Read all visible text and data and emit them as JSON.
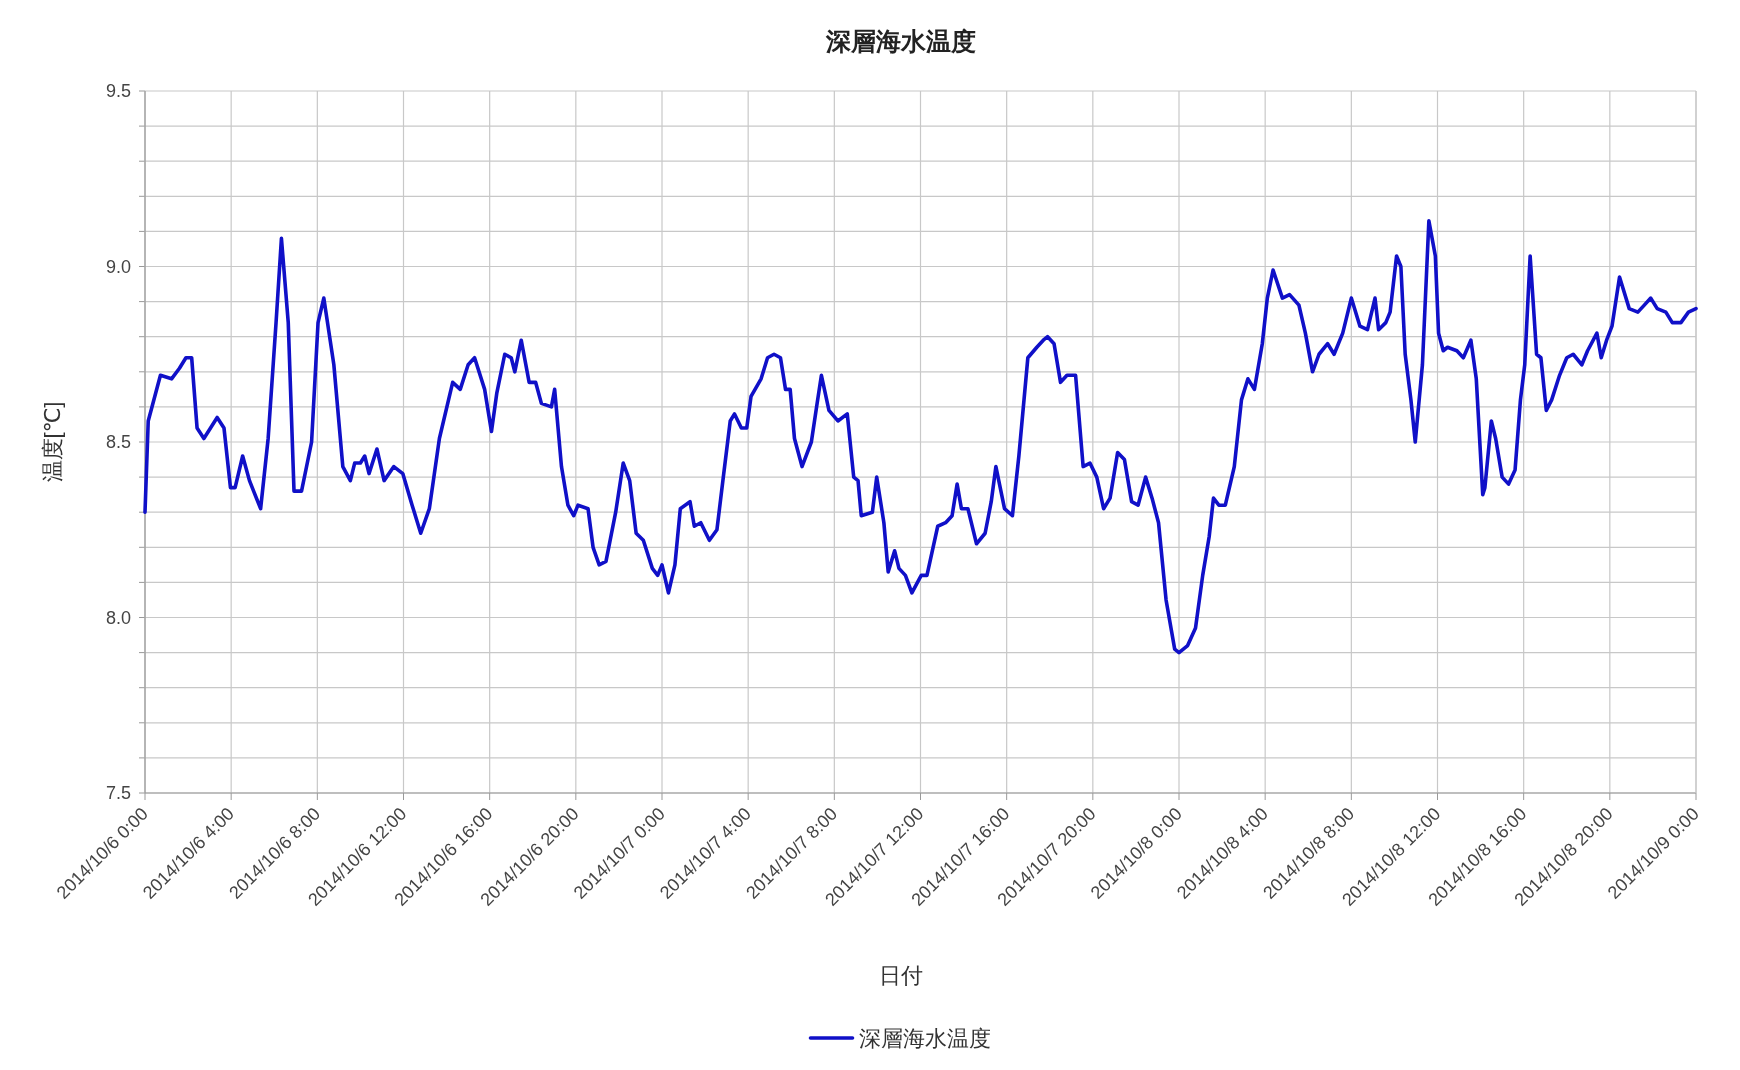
{
  "chart_data": {
    "type": "line",
    "title": "深層海水温度",
    "xlabel": "日付",
    "ylabel": "温度[℃]",
    "xlim": [
      "2014-10-06T00:00",
      "2014-10-09T00:00"
    ],
    "xticks": [
      {
        "value": "2014-10-06T00:00",
        "label": "2014/10/6 0:00"
      },
      {
        "value": "2014-10-06T04:00",
        "label": "2014/10/6 4:00"
      },
      {
        "value": "2014-10-06T08:00",
        "label": "2014/10/6 8:00"
      },
      {
        "value": "2014-10-06T12:00",
        "label": "2014/10/6 12:00"
      },
      {
        "value": "2014-10-06T16:00",
        "label": "2014/10/6 16:00"
      },
      {
        "value": "2014-10-06T20:00",
        "label": "2014/10/6 20:00"
      },
      {
        "value": "2014-10-07T00:00",
        "label": "2014/10/7 0:00"
      },
      {
        "value": "2014-10-07T04:00",
        "label": "2014/10/7 4:00"
      },
      {
        "value": "2014-10-07T08:00",
        "label": "2014/10/7 8:00"
      },
      {
        "value": "2014-10-07T12:00",
        "label": "2014/10/7 12:00"
      },
      {
        "value": "2014-10-07T16:00",
        "label": "2014/10/7 16:00"
      },
      {
        "value": "2014-10-07T20:00",
        "label": "2014/10/7 20:00"
      },
      {
        "value": "2014-10-08T00:00",
        "label": "2014/10/8 0:00"
      },
      {
        "value": "2014-10-08T04:00",
        "label": "2014/10/8 4:00"
      },
      {
        "value": "2014-10-08T08:00",
        "label": "2014/10/8 8:00"
      },
      {
        "value": "2014-10-08T12:00",
        "label": "2014/10/8 12:00"
      },
      {
        "value": "2014-10-08T16:00",
        "label": "2014/10/8 16:00"
      },
      {
        "value": "2014-10-08T20:00",
        "label": "2014/10/8 20:00"
      },
      {
        "value": "2014-10-09T00:00",
        "label": "2014/10/9 0:00"
      }
    ],
    "ylim": [
      7.5,
      9.5
    ],
    "yticks": [
      7.5,
      {
        "value": 7.6,
        "label": null
      },
      {
        "value": 7.7,
        "label": null
      },
      {
        "value": 7.8,
        "label": null
      },
      {
        "value": 7.9,
        "label": null
      },
      {
        "value": 8,
        "label": "8.0"
      },
      {
        "value": 8.1,
        "label": null
      },
      {
        "value": 8.2,
        "label": null
      },
      {
        "value": 8.3,
        "label": null
      },
      {
        "value": 8.4,
        "label": null
      },
      8.5,
      {
        "value": 8.6,
        "label": null
      },
      {
        "value": 8.7,
        "label": null
      },
      {
        "value": 8.8,
        "label": null
      },
      {
        "value": 8.9,
        "label": null
      },
      {
        "value": 9,
        "label": "9.0"
      },
      {
        "value": 9.1,
        "label": null
      },
      {
        "value": 9.2,
        "label": null
      },
      {
        "value": 9.3,
        "label": null
      },
      {
        "value": 9.4,
        "label": null
      },
      9.5
    ],
    "grid": true,
    "legend": "bottom",
    "series": [
      {
        "name": "深層海水温度",
        "color": "#1010c8",
        "x": [
          "2014-10-06T00:00",
          "2014-10-06T00:09",
          "2014-10-06T00:43",
          "2014-10-06T01:14",
          "2014-10-06T01:36",
          "2014-10-06T01:54",
          "2014-10-06T02:10",
          "2014-10-06T02:25",
          "2014-10-06T02:44",
          "2014-10-06T03:21",
          "2014-10-06T03:40",
          "2014-10-06T03:58",
          "2014-10-06T04:11",
          "2014-10-06T04:32",
          "2014-10-06T04:51",
          "2014-10-06T05:22",
          "2014-10-06T05:43",
          "2014-10-06T06:05",
          "2014-10-06T06:20",
          "2014-10-06T06:39",
          "2014-10-06T06:55",
          "2014-10-06T07:16",
          "2014-10-06T07:44",
          "2014-10-06T08:02",
          "2014-10-06T08:18",
          "2014-10-06T08:46",
          "2014-10-06T09:11",
          "2014-10-06T09:32",
          "2014-10-06T09:44",
          "2014-10-06T10:00",
          "2014-10-06T10:12",
          "2014-10-06T10:24",
          "2014-10-06T10:46",
          "2014-10-06T11:06",
          "2014-10-06T11:33",
          "2014-10-06T11:58",
          "2014-10-06T12:24",
          "2014-10-06T12:48",
          "2014-10-06T13:12",
          "2014-10-06T13:40",
          "2014-10-06T14:17",
          "2014-10-06T14:38",
          "2014-10-06T15:00",
          "2014-10-06T15:18",
          "2014-10-06T15:46",
          "2014-10-06T16:05",
          "2014-10-06T16:20",
          "2014-10-06T16:42",
          "2014-10-06T17:00",
          "2014-10-06T17:10",
          "2014-10-06T17:28",
          "2014-10-06T17:50",
          "2014-10-06T18:08",
          "2014-10-06T18:24",
          "2014-10-06T18:52",
          "2014-10-06T19:01",
          "2014-10-06T19:20",
          "2014-10-06T19:38",
          "2014-10-06T19:54",
          "2014-10-06T20:06",
          "2014-10-06T20:34",
          "2014-10-06T20:48",
          "2014-10-06T21:05",
          "2014-10-06T21:24",
          "2014-10-06T21:51",
          "2014-10-06T22:12",
          "2014-10-06T22:30",
          "2014-10-06T22:48",
          "2014-10-06T23:08",
          "2014-10-06T23:33",
          "2014-10-06T23:48",
          "2014-10-07T00:00",
          "2014-10-07T00:18",
          "2014-10-07T00:36",
          "2014-10-07T00:51",
          "2014-10-07T01:18",
          "2014-10-07T01:30",
          "2014-10-07T01:48",
          "2014-10-07T02:12",
          "2014-10-07T02:33",
          "2014-10-07T02:52",
          "2014-10-07T03:10",
          "2014-10-07T03:22",
          "2014-10-07T03:41",
          "2014-10-07T03:56",
          "2014-10-07T04:08",
          "2014-10-07T04:36",
          "2014-10-07T04:54",
          "2014-10-07T05:12",
          "2014-10-07T05:30",
          "2014-10-07T05:44",
          "2014-10-07T05:57",
          "2014-10-07T06:09",
          "2014-10-07T06:30",
          "2014-10-07T06:56",
          "2014-10-07T07:12",
          "2014-10-07T07:24",
          "2014-10-07T07:45",
          "2014-10-07T08:10",
          "2014-10-07T08:36",
          "2014-10-07T08:54",
          "2014-10-07T09:06",
          "2014-10-07T09:15",
          "2014-10-07T09:46",
          "2014-10-07T09:58",
          "2014-10-07T10:18",
          "2014-10-07T10:30",
          "2014-10-07T10:48",
          "2014-10-07T11:00",
          "2014-10-07T11:18",
          "2014-10-07T11:36",
          "2014-10-07T12:02",
          "2014-10-07T12:18",
          "2014-10-07T12:48",
          "2014-10-07T13:10",
          "2014-10-07T13:28",
          "2014-10-07T13:42",
          "2014-10-07T13:54",
          "2014-10-07T14:12",
          "2014-10-07T14:36",
          "2014-10-07T15:00",
          "2014-10-07T15:17",
          "2014-10-07T15:30",
          "2014-10-07T15:54",
          "2014-10-07T16:16",
          "2014-10-07T16:34",
          "2014-10-07T16:59",
          "2014-10-07T17:24",
          "2014-10-07T17:42",
          "2014-10-07T17:54",
          "2014-10-07T18:12",
          "2014-10-07T18:30",
          "2014-10-07T18:48",
          "2014-10-07T19:12",
          "2014-10-07T19:33",
          "2014-10-07T19:52",
          "2014-10-07T20:11",
          "2014-10-07T20:30",
          "2014-10-07T20:48",
          "2014-10-07T21:09",
          "2014-10-07T21:28",
          "2014-10-07T21:48",
          "2014-10-07T22:06",
          "2014-10-07T22:27",
          "2014-10-07T22:45",
          "2014-10-07T23:03",
          "2014-10-07T23:24",
          "2014-10-07T23:48",
          "2014-10-08T00:00",
          "2014-10-08T00:24",
          "2014-10-08T00:46",
          "2014-10-08T01:06",
          "2014-10-08T01:24",
          "2014-10-08T01:36",
          "2014-10-08T01:51",
          "2014-10-08T02:09",
          "2014-10-08T02:34",
          "2014-10-08T02:54",
          "2014-10-08T03:12",
          "2014-10-08T03:30",
          "2014-10-08T03:52",
          "2014-10-08T04:06",
          "2014-10-08T04:22",
          "2014-10-08T04:48",
          "2014-10-08T05:08",
          "2014-10-08T05:34",
          "2014-10-08T05:52",
          "2014-10-08T06:12",
          "2014-10-08T06:30",
          "2014-10-08T06:54",
          "2014-10-08T07:12",
          "2014-10-08T07:36",
          "2014-10-08T08:00",
          "2014-10-08T08:24",
          "2014-10-08T08:45",
          "2014-10-08T09:06",
          "2014-10-08T09:16",
          "2014-10-08T09:36",
          "2014-10-08T09:48",
          "2014-10-08T10:06",
          "2014-10-08T10:18",
          "2014-10-08T10:30",
          "2014-10-08T10:46",
          "2014-10-08T10:58",
          "2014-10-08T11:18",
          "2014-10-08T11:36",
          "2014-10-08T11:54",
          "2014-10-08T12:03",
          "2014-10-08T12:16",
          "2014-10-08T12:28",
          "2014-10-08T12:54",
          "2014-10-08T13:12",
          "2014-10-08T13:33",
          "2014-10-08T13:48",
          "2014-10-08T14:06",
          "2014-10-08T14:12",
          "2014-10-08T14:30",
          "2014-10-08T14:42",
          "2014-10-08T15:00",
          "2014-10-08T15:18",
          "2014-10-08T15:36",
          "2014-10-08T15:51",
          "2014-10-08T16:03",
          "2014-10-08T16:18",
          "2014-10-08T16:36",
          "2014-10-08T16:48",
          "2014-10-08T17:03",
          "2014-10-08T17:18",
          "2014-10-08T17:40",
          "2014-10-08T18:00",
          "2014-10-08T18:18",
          "2014-10-08T18:42",
          "2014-10-08T18:58",
          "2014-10-08T19:24",
          "2014-10-08T19:36",
          "2014-10-08T19:51",
          "2014-10-08T20:06",
          "2014-10-08T20:27",
          "2014-10-08T20:54",
          "2014-10-08T21:18",
          "2014-10-08T21:36",
          "2014-10-08T21:54",
          "2014-10-08T22:12",
          "2014-10-08T22:36",
          "2014-10-08T22:54",
          "2014-10-08T23:18",
          "2014-10-08T23:39",
          "2014-10-09T00:00"
        ],
        "values": [
          8.3,
          8.56,
          8.69,
          8.68,
          8.71,
          8.74,
          8.74,
          8.54,
          8.51,
          8.57,
          8.54,
          8.37,
          8.37,
          8.46,
          8.39,
          8.31,
          8.51,
          8.84,
          9.08,
          8.84,
          8.36,
          8.36,
          8.5,
          8.84,
          8.91,
          8.72,
          8.43,
          8.39,
          8.44,
          8.44,
          8.46,
          8.41,
          8.48,
          8.39,
          8.43,
          8.41,
          8.32,
          8.24,
          8.31,
          8.51,
          8.67,
          8.65,
          8.72,
          8.74,
          8.65,
          8.53,
          8.64,
          8.75,
          8.74,
          8.7,
          8.79,
          8.67,
          8.67,
          8.61,
          8.6,
          8.65,
          8.43,
          8.32,
          8.29,
          8.32,
          8.31,
          8.2,
          8.15,
          8.16,
          8.3,
          8.44,
          8.39,
          8.24,
          8.22,
          8.14,
          8.12,
          8.15,
          8.07,
          8.15,
          8.31,
          8.33,
          8.26,
          8.27,
          8.22,
          8.25,
          8.41,
          8.56,
          8.58,
          8.54,
          8.54,
          8.63,
          8.68,
          8.74,
          8.75,
          8.74,
          8.65,
          8.65,
          8.51,
          8.43,
          8.5,
          8.61,
          8.69,
          8.59,
          8.56,
          8.58,
          8.4,
          8.39,
          8.29,
          8.3,
          8.4,
          8.27,
          8.13,
          8.19,
          8.14,
          8.12,
          8.07,
          8.12,
          8.12,
          8.26,
          8.27,
          8.29,
          8.38,
          8.31,
          8.31,
          8.21,
          8.24,
          8.33,
          8.43,
          8.31,
          8.29,
          8.46,
          8.74,
          8.77,
          8.79,
          8.8,
          8.78,
          8.67,
          8.69,
          8.69,
          8.43,
          8.44,
          8.4,
          8.31,
          8.34,
          8.47,
          8.45,
          8.33,
          8.32,
          8.4,
          8.34,
          8.27,
          8.05,
          7.91,
          7.9,
          7.92,
          7.97,
          8.12,
          8.23,
          8.34,
          8.32,
          8.32,
          8.43,
          8.62,
          8.68,
          8.65,
          8.78,
          8.91,
          8.99,
          8.91,
          8.92,
          8.89,
          8.81,
          8.7,
          8.75,
          8.78,
          8.75,
          8.81,
          8.91,
          8.83,
          8.82,
          8.91,
          8.82,
          8.84,
          8.87,
          9.03,
          9,
          8.75,
          8.62,
          8.5,
          8.72,
          9.13,
          9.03,
          8.81,
          8.76,
          8.77,
          8.76,
          8.74,
          8.79,
          8.68,
          8.35,
          8.37,
          8.56,
          8.51,
          8.4,
          8.38,
          8.42,
          8.62,
          8.72,
          9.03,
          8.75,
          8.74,
          8.59,
          8.62,
          8.69,
          8.74,
          8.75,
          8.72,
          8.76,
          8.81,
          8.74,
          8.79,
          8.83,
          8.97,
          8.88,
          8.87,
          8.89,
          8.91,
          8.88,
          8.87,
          8.84,
          8.84,
          8.87,
          8.88
        ]
      }
    ]
  }
}
